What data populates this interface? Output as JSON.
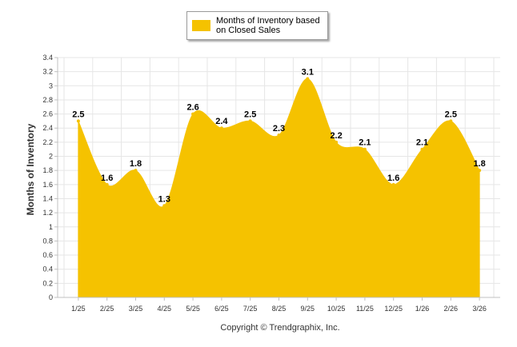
{
  "colors": {
    "fill": "#f5c200",
    "grid": "#e6e6e6",
    "axis": "#c0c0c0"
  },
  "legend": {
    "label": "Months of Inventory based on Closed Sales"
  },
  "copyright": "Copyright © Trendgraphix, Inc.",
  "chart_data": {
    "type": "area",
    "title": "",
    "xlabel": "",
    "ylabel": "Months of Inventory",
    "ylim": [
      0,
      3.4
    ],
    "yticks": [
      0,
      0.2,
      0.4,
      0.6,
      0.8,
      1,
      1.2,
      1.4,
      1.6,
      1.8,
      2,
      2.2,
      2.4,
      2.6,
      2.8,
      3,
      3.2,
      3.4
    ],
    "ytick_labels": [
      "0",
      "0.2",
      "0.4",
      "0.6",
      "0.8",
      "1",
      "1.2",
      "1.4",
      "1.6",
      "1.8",
      "2",
      "2.2",
      "2.4",
      "2.6",
      "2.8",
      "3",
      "3.2",
      "3.4"
    ],
    "categories": [
      "1/25",
      "2/25",
      "3/25",
      "4/25",
      "5/25",
      "6/25",
      "7/25",
      "8/25",
      "9/25",
      "10/25",
      "11/25",
      "12/25",
      "1/26",
      "2/26",
      "3/26"
    ],
    "series": [
      {
        "name": "Months of Inventory based on Closed Sales",
        "values": [
          2.5,
          1.6,
          1.8,
          1.3,
          2.6,
          2.4,
          2.5,
          2.3,
          3.1,
          2.2,
          2.1,
          1.6,
          2.1,
          2.5,
          1.8
        ],
        "labels": [
          "2.5",
          "1.6",
          "1.8",
          "1.3",
          "2.6",
          "2.4",
          "2.5",
          "2.3",
          "3.1",
          "2.2",
          "2.1",
          "1.6",
          "2.1",
          "2.5",
          "1.8"
        ]
      }
    ],
    "grid": true,
    "legend_position": "top-center"
  }
}
